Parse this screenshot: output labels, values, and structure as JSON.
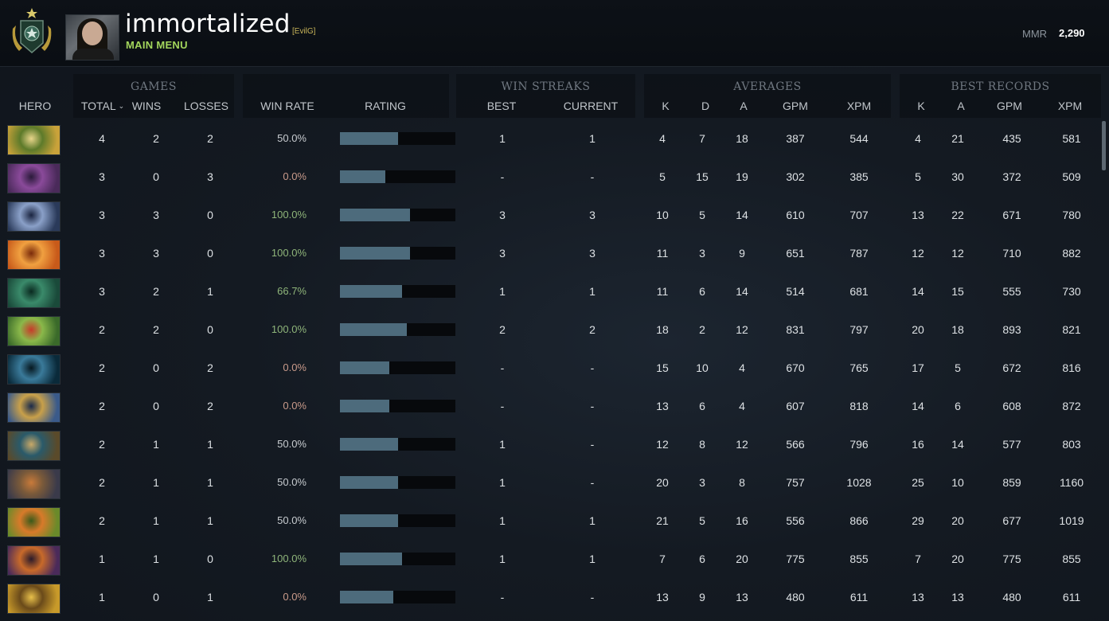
{
  "header": {
    "username": "immortalized",
    "clan_tag": "[EvilG]",
    "main_menu_label": "MAIN MENU",
    "mmr_label": "MMR",
    "mmr_value": "2,290",
    "rank_icon": "rank-medal-icon",
    "avatar_icon": "player-avatar"
  },
  "groups": {
    "games": "GAMES",
    "win_streaks": "WIN STREAKS",
    "averages": "AVERAGES",
    "best_records": "BEST RECORDS"
  },
  "columns": {
    "hero": "HERO",
    "total": "TOTAL",
    "wins": "WINS",
    "losses": "LOSSES",
    "win_rate": "WIN RATE",
    "rating": "RATING",
    "streak_best": "BEST",
    "streak_current": "CURRENT",
    "avg_k": "K",
    "avg_d": "D",
    "avg_a": "A",
    "avg_gpm": "GPM",
    "avg_xpm": "XPM",
    "best_k": "K",
    "best_a": "A",
    "best_gpm": "GPM",
    "best_xpm": "XPM",
    "sort_icon": "chevron-down-icon"
  },
  "colors": {
    "win_rate_high": "#8fb57a",
    "win_rate_low": "#c99a8a",
    "rating_bar": "#4d6b7c",
    "main_menu": "#a3d65c"
  },
  "rows": [
    {
      "total": "4",
      "wins": "2",
      "losses": "2",
      "win_rate": "50.0%",
      "rating": 0.5,
      "streak_best": "1",
      "streak_current": "1",
      "avg_k": "4",
      "avg_d": "7",
      "avg_a": "18",
      "avg_gpm": "387",
      "avg_xpm": "544",
      "best_k": "4",
      "best_a": "21",
      "best_gpm": "435",
      "best_xpm": "581",
      "portrait": [
        "#c9a23a",
        "#5d7a2a",
        "#e8d58a"
      ]
    },
    {
      "total": "3",
      "wins": "0",
      "losses": "3",
      "win_rate": "0.0%",
      "rating": 0.39,
      "streak_best": "-",
      "streak_current": "-",
      "avg_k": "5",
      "avg_d": "15",
      "avg_a": "19",
      "avg_gpm": "302",
      "avg_xpm": "385",
      "best_k": "5",
      "best_a": "30",
      "best_gpm": "372",
      "best_xpm": "509",
      "portrait": [
        "#4a2a5a",
        "#8a4a9a",
        "#2a1a3a"
      ]
    },
    {
      "total": "3",
      "wins": "3",
      "losses": "0",
      "win_rate": "100.0%",
      "rating": 0.61,
      "streak_best": "3",
      "streak_current": "3",
      "avg_k": "10",
      "avg_d": "5",
      "avg_a": "14",
      "avg_gpm": "610",
      "avg_xpm": "707",
      "best_k": "13",
      "best_a": "22",
      "best_gpm": "671",
      "best_xpm": "780",
      "portrait": [
        "#2a3a5a",
        "#8aa0c8",
        "#1a2440"
      ]
    },
    {
      "total": "3",
      "wins": "3",
      "losses": "0",
      "win_rate": "100.0%",
      "rating": 0.61,
      "streak_best": "3",
      "streak_current": "3",
      "avg_k": "11",
      "avg_d": "3",
      "avg_a": "9",
      "avg_gpm": "651",
      "avg_xpm": "787",
      "best_k": "12",
      "best_a": "12",
      "best_gpm": "710",
      "best_xpm": "882",
      "portrait": [
        "#c85a1a",
        "#f0a040",
        "#7a2a0a"
      ]
    },
    {
      "total": "3",
      "wins": "2",
      "losses": "1",
      "win_rate": "66.7%",
      "rating": 0.54,
      "streak_best": "1",
      "streak_current": "1",
      "avg_k": "11",
      "avg_d": "6",
      "avg_a": "14",
      "avg_gpm": "514",
      "avg_xpm": "681",
      "best_k": "14",
      "best_a": "15",
      "best_gpm": "555",
      "best_xpm": "730",
      "portrait": [
        "#1a4a3a",
        "#3a8a6a",
        "#0a2a20"
      ]
    },
    {
      "total": "2",
      "wins": "2",
      "losses": "0",
      "win_rate": "100.0%",
      "rating": 0.58,
      "streak_best": "2",
      "streak_current": "2",
      "avg_k": "18",
      "avg_d": "2",
      "avg_a": "12",
      "avg_gpm": "831",
      "avg_xpm": "797",
      "best_k": "20",
      "best_a": "18",
      "best_gpm": "893",
      "best_xpm": "821",
      "portrait": [
        "#3a6a2a",
        "#8ab84a",
        "#c83a2a"
      ]
    },
    {
      "total": "2",
      "wins": "0",
      "losses": "2",
      "win_rate": "0.0%",
      "rating": 0.43,
      "streak_best": "-",
      "streak_current": "-",
      "avg_k": "15",
      "avg_d": "10",
      "avg_a": "4",
      "avg_gpm": "670",
      "avg_xpm": "765",
      "best_k": "17",
      "best_a": "5",
      "best_gpm": "672",
      "best_xpm": "816",
      "portrait": [
        "#0a2a3a",
        "#3a7a9a",
        "#061820"
      ]
    },
    {
      "total": "2",
      "wins": "0",
      "losses": "2",
      "win_rate": "0.0%",
      "rating": 0.43,
      "streak_best": "-",
      "streak_current": "-",
      "avg_k": "13",
      "avg_d": "6",
      "avg_a": "4",
      "avg_gpm": "607",
      "avg_xpm": "818",
      "best_k": "14",
      "best_a": "6",
      "best_gpm": "608",
      "best_xpm": "872",
      "portrait": [
        "#3a5a8a",
        "#c8a04a",
        "#1a2a4a"
      ]
    },
    {
      "total": "2",
      "wins": "1",
      "losses": "1",
      "win_rate": "50.0%",
      "rating": 0.5,
      "streak_best": "1",
      "streak_current": "-",
      "avg_k": "12",
      "avg_d": "8",
      "avg_a": "12",
      "avg_gpm": "566",
      "avg_xpm": "796",
      "best_k": "16",
      "best_a": "14",
      "best_gpm": "577",
      "best_xpm": "803",
      "portrait": [
        "#5a4a2a",
        "#2a5a6a",
        "#c8a868"
      ]
    },
    {
      "total": "2",
      "wins": "1",
      "losses": "1",
      "win_rate": "50.0%",
      "rating": 0.5,
      "streak_best": "1",
      "streak_current": "-",
      "avg_k": "20",
      "avg_d": "3",
      "avg_a": "8",
      "avg_gpm": "757",
      "avg_xpm": "1028",
      "best_k": "25",
      "best_a": "10",
      "best_gpm": "859",
      "best_xpm": "1160",
      "portrait": [
        "#3a3a4a",
        "#7a5a3a",
        "#c87a3a"
      ]
    },
    {
      "total": "2",
      "wins": "1",
      "losses": "1",
      "win_rate": "50.0%",
      "rating": 0.5,
      "streak_best": "1",
      "streak_current": "1",
      "avg_k": "21",
      "avg_d": "5",
      "avg_a": "16",
      "avg_gpm": "556",
      "avg_xpm": "866",
      "best_k": "29",
      "best_a": "20",
      "best_gpm": "677",
      "best_xpm": "1019",
      "portrait": [
        "#6a8a2a",
        "#d87a2a",
        "#3a5a1a"
      ]
    },
    {
      "total": "1",
      "wins": "1",
      "losses": "0",
      "win_rate": "100.0%",
      "rating": 0.54,
      "streak_best": "1",
      "streak_current": "1",
      "avg_k": "7",
      "avg_d": "6",
      "avg_a": "20",
      "avg_gpm": "775",
      "avg_xpm": "855",
      "best_k": "7",
      "best_a": "20",
      "best_gpm": "775",
      "best_xpm": "855",
      "portrait": [
        "#4a2a5a",
        "#c86a2a",
        "#2a1a2a"
      ]
    },
    {
      "total": "1",
      "wins": "0",
      "losses": "1",
      "win_rate": "0.0%",
      "rating": 0.46,
      "streak_best": "-",
      "streak_current": "-",
      "avg_k": "13",
      "avg_d": "9",
      "avg_a": "13",
      "avg_gpm": "480",
      "avg_xpm": "611",
      "best_k": "13",
      "best_a": "13",
      "best_gpm": "480",
      "best_xpm": "611",
      "portrait": [
        "#c89a2a",
        "#6a4a1a",
        "#e8c04a"
      ]
    }
  ]
}
